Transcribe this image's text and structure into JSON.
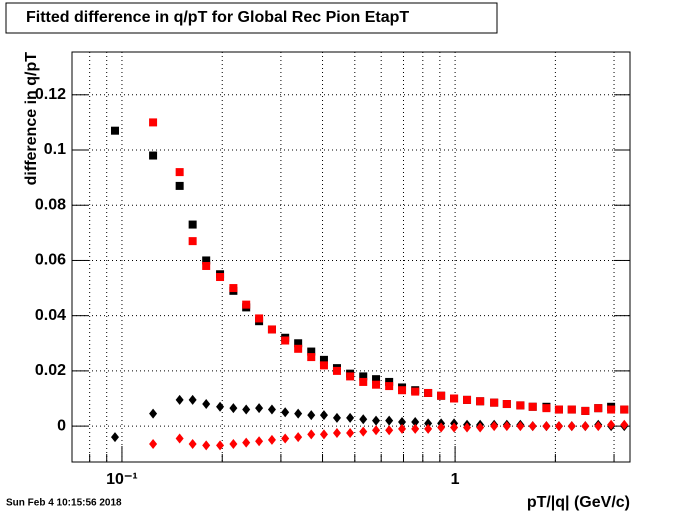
{
  "chart_data": {
    "type": "scatter",
    "title": "Fitted difference in q/pT for Global Rec Pion EtapT",
    "x_label": "pT/|q| (GeV/c)",
    "y_label": "difference in q/pT",
    "timestamp": "Sun Feb  4 10:15:56 2018",
    "x_log": true,
    "grid": true,
    "xlim": [
      0.0708,
      3.35
    ],
    "ylim": [
      -0.013,
      0.1355
    ],
    "xticks": [
      {
        "value": 0.1,
        "label": "10⁻¹"
      },
      1
    ],
    "x_minor_ticks": [
      0.08,
      0.09,
      0.2,
      0.3,
      0.4,
      0.5,
      0.6,
      0.7,
      0.8,
      0.9,
      2,
      3
    ],
    "yticks": [
      0,
      0.02,
      0.04,
      0.06,
      0.08,
      0.1,
      0.12
    ],
    "x": [
      0.0953,
      0.124,
      0.149,
      0.163,
      0.179,
      0.197,
      0.216,
      0.236,
      0.258,
      0.282,
      0.309,
      0.338,
      0.37,
      0.404,
      0.442,
      0.484,
      0.53,
      0.579,
      0.634,
      0.693,
      0.759,
      0.83,
      0.908,
      0.993,
      1.086,
      1.189,
      1.31,
      1.43,
      1.57,
      1.71,
      1.88,
      2.05,
      2.24,
      2.46,
      2.69,
      2.94,
      3.22
    ],
    "series": [
      {
        "marker": "square",
        "color": "#000000",
        "values": [
          0.107,
          0.098,
          0.087,
          0.073,
          0.06,
          0.055,
          0.049,
          0.043,
          0.038,
          0.035,
          0.032,
          0.03,
          0.027,
          0.024,
          0.021,
          0.019,
          0.018,
          0.017,
          0.016,
          0.014,
          0.013,
          0.012,
          0.011,
          0.01,
          0.0095,
          0.009,
          0.0085,
          0.008,
          0.0075,
          0.007,
          0.007,
          0.006,
          0.006,
          0.0055,
          0.0065,
          0.007,
          0.006
        ]
      },
      {
        "marker": "square",
        "color": "#ff0000",
        "values": [
          null,
          0.11,
          0.092,
          0.067,
          0.058,
          0.054,
          0.05,
          0.044,
          0.039,
          0.035,
          0.031,
          0.028,
          0.025,
          0.022,
          0.02,
          0.018,
          0.016,
          0.015,
          0.0145,
          0.013,
          0.0125,
          0.012,
          0.011,
          0.01,
          0.0095,
          0.009,
          0.0085,
          0.008,
          0.0075,
          0.007,
          0.0065,
          0.006,
          0.006,
          0.0055,
          0.0065,
          0.006,
          0.006
        ]
      },
      {
        "marker": "diamond",
        "color": "#000000",
        "values": [
          -0.004,
          0.0045,
          0.0095,
          0.0095,
          0.008,
          0.007,
          0.0065,
          0.006,
          0.0065,
          0.006,
          0.005,
          0.0045,
          0.004,
          0.004,
          0.003,
          0.003,
          0.0025,
          0.002,
          0.002,
          0.0015,
          0.0015,
          0.001,
          0.001,
          0.001,
          0.0005,
          0.0005,
          0.0005,
          0.0005,
          0.0005,
          0,
          0,
          0,
          0,
          0,
          0.0005,
          0,
          0
        ]
      },
      {
        "marker": "diamond",
        "color": "#ff0000",
        "values": [
          null,
          -0.0065,
          -0.0045,
          -0.0065,
          -0.007,
          -0.007,
          -0.0065,
          -0.006,
          -0.0055,
          -0.005,
          -0.0045,
          -0.004,
          -0.003,
          -0.003,
          -0.0025,
          -0.0025,
          -0.002,
          -0.0015,
          -0.0015,
          -0.001,
          -0.001,
          -0.001,
          -0.0005,
          -0.0005,
          -0.0005,
          -0.0005,
          0,
          0,
          0,
          0,
          0,
          0,
          0,
          0,
          0,
          0.0005,
          0.0005
        ]
      }
    ]
  }
}
